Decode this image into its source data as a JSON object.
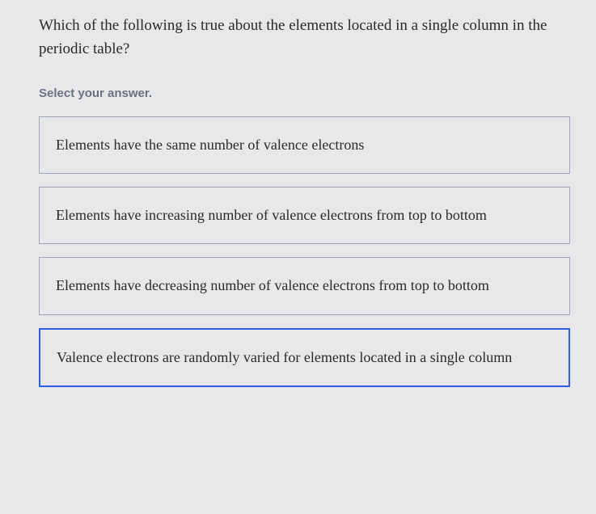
{
  "question": {
    "text": "Which of the following is true about the elements located in a single column in the periodic table?",
    "prompt": "Select your answer.",
    "options": [
      {
        "label": "Elements have the same number of valence electrons",
        "selected": false
      },
      {
        "label": "Elements have increasing number of valence electrons from top to bottom",
        "selected": false
      },
      {
        "label": "Elements have decreasing number of valence electrons from top to bottom",
        "selected": false
      },
      {
        "label": "Valence electrons are randomly varied for elements located in a single column",
        "selected": true
      }
    ]
  },
  "styles": {
    "background_color": "#e8e8ea",
    "text_color": "#2a2a2a",
    "prompt_color": "#6a7280",
    "border_color": "#9da5b8",
    "selected_border_color": "#2f5fe0",
    "question_fontsize": 19,
    "option_fontsize": 18,
    "prompt_fontsize": 15
  }
}
